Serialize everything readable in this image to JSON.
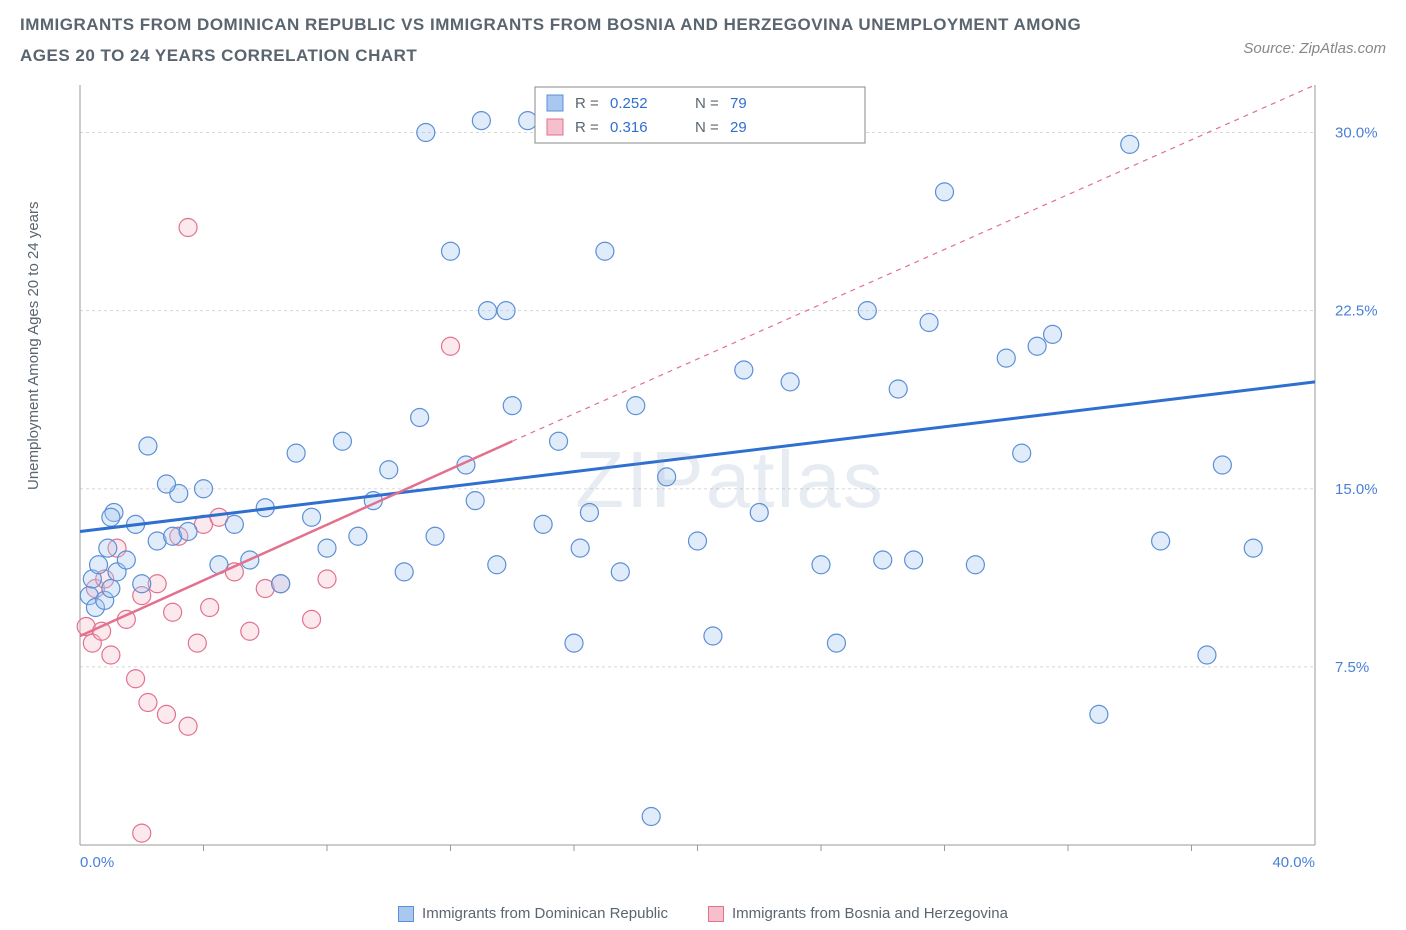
{
  "header": {
    "title": "IMMIGRANTS FROM DOMINICAN REPUBLIC VS IMMIGRANTS FROM BOSNIA AND HERZEGOVINA UNEMPLOYMENT AMONG AGES 20 TO 24 YEARS CORRELATION CHART",
    "source_prefix": "Source: ",
    "source_name": "ZipAtlas.com"
  },
  "chart": {
    "type": "scatter",
    "ylabel": "Unemployment Among Ages 20 to 24 years",
    "xlim": [
      0,
      40
    ],
    "ylim": [
      0,
      32
    ],
    "xtick_values": [
      0,
      40
    ],
    "xtick_labels": [
      "0.0%",
      "40.0%"
    ],
    "ytick_values": [
      7.5,
      15.0,
      22.5,
      30.0
    ],
    "ytick_labels": [
      "7.5%",
      "15.0%",
      "22.5%",
      "30.0%"
    ],
    "x_minor_ticks": [
      4,
      8,
      12,
      16,
      20,
      24,
      28,
      32,
      36
    ],
    "grid_color": "#d8d8d8",
    "axis_color": "#999999",
    "tick_label_color": "#4a7fd8",
    "background_color": "#ffffff",
    "marker_radius": 9,
    "marker_fill_opacity": 0.35,
    "marker_stroke_width": 1.2,
    "watermark": "ZIPatlas",
    "series_a": {
      "name": "Immigrants from Dominican Republic",
      "color_fill": "#a9c8f0",
      "color_stroke": "#5b8fd6",
      "trend_color": "#2e6fd0",
      "trend_width": 3,
      "trend_dash": "none",
      "R": 0.252,
      "N": 79,
      "trend_start": [
        0,
        13.2
      ],
      "trend_end": [
        40,
        19.5
      ],
      "points": [
        [
          0.3,
          10.5
        ],
        [
          0.4,
          11.2
        ],
        [
          0.5,
          10.0
        ],
        [
          0.6,
          11.8
        ],
        [
          0.8,
          10.3
        ],
        [
          0.9,
          12.5
        ],
        [
          1.0,
          10.8
        ],
        [
          1.1,
          14.0
        ],
        [
          1.2,
          11.5
        ],
        [
          1.5,
          12.0
        ],
        [
          1.8,
          13.5
        ],
        [
          2.0,
          11.0
        ],
        [
          2.2,
          16.8
        ],
        [
          2.5,
          12.8
        ],
        [
          3.0,
          13.0
        ],
        [
          3.2,
          14.8
        ],
        [
          3.5,
          13.2
        ],
        [
          4.0,
          15.0
        ],
        [
          4.5,
          11.8
        ],
        [
          5.0,
          13.5
        ],
        [
          5.5,
          12.0
        ],
        [
          6.0,
          14.2
        ],
        [
          6.5,
          11.0
        ],
        [
          7.0,
          16.5
        ],
        [
          7.5,
          13.8
        ],
        [
          8.0,
          12.5
        ],
        [
          8.5,
          17.0
        ],
        [
          9.0,
          13.0
        ],
        [
          9.5,
          14.5
        ],
        [
          10.0,
          15.8
        ],
        [
          10.5,
          11.5
        ],
        [
          11.0,
          18.0
        ],
        [
          11.2,
          30.0
        ],
        [
          11.5,
          13.0
        ],
        [
          12.0,
          25.0
        ],
        [
          12.5,
          16.0
        ],
        [
          12.8,
          14.5
        ],
        [
          13.0,
          30.5
        ],
        [
          13.2,
          22.5
        ],
        [
          13.5,
          11.8
        ],
        [
          13.8,
          22.5
        ],
        [
          14.0,
          18.5
        ],
        [
          14.5,
          30.5
        ],
        [
          15.0,
          13.5
        ],
        [
          15.5,
          17.0
        ],
        [
          16.0,
          8.5
        ],
        [
          16.2,
          12.5
        ],
        [
          16.5,
          14.0
        ],
        [
          17.0,
          25.0
        ],
        [
          17.5,
          11.5
        ],
        [
          18.0,
          18.5
        ],
        [
          18.5,
          1.2
        ],
        [
          19.0,
          15.5
        ],
        [
          20.0,
          12.8
        ],
        [
          20.5,
          8.8
        ],
        [
          21.5,
          20.0
        ],
        [
          22.0,
          14.0
        ],
        [
          23.0,
          19.5
        ],
        [
          24.0,
          11.8
        ],
        [
          24.5,
          8.5
        ],
        [
          25.5,
          22.5
        ],
        [
          26.0,
          12.0
        ],
        [
          26.5,
          19.2
        ],
        [
          27.0,
          12.0
        ],
        [
          27.5,
          22.0
        ],
        [
          28.0,
          27.5
        ],
        [
          29.0,
          11.8
        ],
        [
          30.0,
          20.5
        ],
        [
          30.5,
          16.5
        ],
        [
          31.0,
          21.0
        ],
        [
          31.5,
          21.5
        ],
        [
          33.0,
          5.5
        ],
        [
          34.0,
          29.5
        ],
        [
          35.0,
          12.8
        ],
        [
          36.5,
          8.0
        ],
        [
          37.0,
          16.0
        ],
        [
          38.0,
          12.5
        ],
        [
          1.0,
          13.8
        ],
        [
          2.8,
          15.2
        ]
      ]
    },
    "series_b": {
      "name": "Immigrants from Bosnia and Herzegovina",
      "color_fill": "#f5c0cb",
      "color_stroke": "#e2718e",
      "trend_color": "#e2718e",
      "trend_width": 2.5,
      "trend_dash": "none",
      "trend_ext_dash": "5,5",
      "R": 0.316,
      "N": 29,
      "trend_start": [
        0,
        8.8
      ],
      "trend_end": [
        14,
        17.0
      ],
      "trend_ext_end": [
        40,
        32.0
      ],
      "points": [
        [
          0.2,
          9.2
        ],
        [
          0.4,
          8.5
        ],
        [
          0.5,
          10.8
        ],
        [
          0.7,
          9.0
        ],
        [
          0.8,
          11.2
        ],
        [
          1.0,
          8.0
        ],
        [
          1.2,
          12.5
        ],
        [
          1.5,
          9.5
        ],
        [
          1.8,
          7.0
        ],
        [
          2.0,
          10.5
        ],
        [
          2.2,
          6.0
        ],
        [
          2.5,
          11.0
        ],
        [
          2.8,
          5.5
        ],
        [
          3.0,
          9.8
        ],
        [
          3.2,
          13.0
        ],
        [
          3.5,
          26.0
        ],
        [
          3.8,
          8.5
        ],
        [
          4.0,
          13.5
        ],
        [
          4.2,
          10.0
        ],
        [
          4.5,
          13.8
        ],
        [
          5.0,
          11.5
        ],
        [
          5.5,
          9.0
        ],
        [
          6.0,
          10.8
        ],
        [
          6.5,
          11.0
        ],
        [
          7.5,
          9.5
        ],
        [
          8.0,
          11.2
        ],
        [
          2.0,
          0.5
        ],
        [
          3.5,
          5.0
        ],
        [
          12.0,
          21.0
        ]
      ]
    },
    "top_legend": {
      "border_color": "#888888",
      "bg_color": "#ffffff",
      "text_color": "#5a6570",
      "value_color": "#2e6fd0",
      "R_label": "R =",
      "N_label": "N ="
    }
  },
  "bottom_legend": {
    "a_label": "Immigrants from Dominican Republic",
    "b_label": "Immigrants from Bosnia and Herzegovina"
  }
}
